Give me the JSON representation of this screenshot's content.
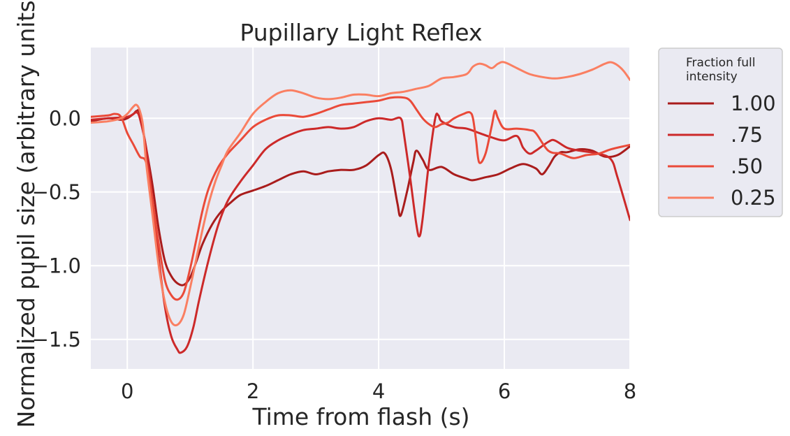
{
  "chart_data": {
    "type": "line",
    "title": "Pupillary Light Reflex",
    "xlabel": "Time from flash (s)",
    "ylabel": "Normalized pupil size (arbitrary units)",
    "xlim": [
      -0.58,
      8
    ],
    "ylim": [
      -1.7,
      0.48
    ],
    "xticks": [
      0,
      2,
      4,
      6,
      8
    ],
    "xtick_labels": [
      "0",
      "2",
      "4",
      "6",
      "8"
    ],
    "yticks": [
      0.0,
      -0.5,
      -1.0,
      -1.5
    ],
    "ytick_labels": [
      "0.0",
      "−0.5",
      "−1.0",
      "−1.5"
    ],
    "grid": true,
    "legend": {
      "title": "Fraction full intensity",
      "title_lines": [
        "Fraction full",
        "intensity"
      ],
      "placement": "outside-top-right"
    },
    "series": [
      {
        "name": "1.00",
        "color": "#a91c1c",
        "points": [
          [
            -0.58,
            -0.02
          ],
          [
            -0.3,
            0.0
          ],
          [
            -0.1,
            -0.01
          ],
          [
            0.0,
            0.0
          ],
          [
            0.1,
            0.03
          ],
          [
            0.15,
            0.05
          ],
          [
            0.2,
            0.03
          ],
          [
            0.3,
            -0.2
          ],
          [
            0.4,
            -0.45
          ],
          [
            0.5,
            -0.75
          ],
          [
            0.6,
            -0.97
          ],
          [
            0.7,
            -1.07
          ],
          [
            0.8,
            -1.12
          ],
          [
            0.9,
            -1.13
          ],
          [
            1.0,
            -1.08
          ],
          [
            1.1,
            -0.97
          ],
          [
            1.2,
            -0.85
          ],
          [
            1.35,
            -0.72
          ],
          [
            1.5,
            -0.63
          ],
          [
            1.65,
            -0.57
          ],
          [
            1.8,
            -0.52
          ],
          [
            2.0,
            -0.49
          ],
          [
            2.2,
            -0.46
          ],
          [
            2.4,
            -0.42
          ],
          [
            2.6,
            -0.38
          ],
          [
            2.8,
            -0.36
          ],
          [
            3.0,
            -0.38
          ],
          [
            3.2,
            -0.36
          ],
          [
            3.4,
            -0.35
          ],
          [
            3.6,
            -0.35
          ],
          [
            3.8,
            -0.32
          ],
          [
            4.0,
            -0.25
          ],
          [
            4.1,
            -0.24
          ],
          [
            4.2,
            -0.35
          ],
          [
            4.3,
            -0.58
          ],
          [
            4.35,
            -0.66
          ],
          [
            4.45,
            -0.5
          ],
          [
            4.55,
            -0.3
          ],
          [
            4.6,
            -0.22
          ],
          [
            4.7,
            -0.28
          ],
          [
            4.8,
            -0.35
          ],
          [
            5.0,
            -0.33
          ],
          [
            5.2,
            -0.38
          ],
          [
            5.4,
            -0.41
          ],
          [
            5.5,
            -0.42
          ],
          [
            5.7,
            -0.4
          ],
          [
            5.9,
            -0.38
          ],
          [
            6.1,
            -0.34
          ],
          [
            6.3,
            -0.31
          ],
          [
            6.5,
            -0.34
          ],
          [
            6.6,
            -0.38
          ],
          [
            6.7,
            -0.33
          ],
          [
            6.8,
            -0.26
          ],
          [
            6.9,
            -0.23
          ],
          [
            7.0,
            -0.23
          ],
          [
            7.2,
            -0.21
          ],
          [
            7.4,
            -0.22
          ],
          [
            7.6,
            -0.26
          ],
          [
            7.8,
            -0.25
          ],
          [
            8.0,
            -0.19
          ]
        ]
      },
      {
        "name": ".75",
        "color": "#cc2929",
        "points": [
          [
            -0.58,
            -0.01
          ],
          [
            -0.3,
            0.0
          ],
          [
            0.0,
            0.01
          ],
          [
            0.1,
            0.03
          ],
          [
            0.15,
            0.04
          ],
          [
            0.2,
            0.0
          ],
          [
            0.3,
            -0.2
          ],
          [
            0.4,
            -0.55
          ],
          [
            0.5,
            -0.95
          ],
          [
            0.6,
            -1.28
          ],
          [
            0.7,
            -1.48
          ],
          [
            0.8,
            -1.57
          ],
          [
            0.85,
            -1.59
          ],
          [
            0.95,
            -1.55
          ],
          [
            1.05,
            -1.42
          ],
          [
            1.15,
            -1.22
          ],
          [
            1.3,
            -0.95
          ],
          [
            1.45,
            -0.72
          ],
          [
            1.6,
            -0.56
          ],
          [
            1.8,
            -0.43
          ],
          [
            2.0,
            -0.32
          ],
          [
            2.2,
            -0.21
          ],
          [
            2.4,
            -0.15
          ],
          [
            2.6,
            -0.11
          ],
          [
            2.8,
            -0.08
          ],
          [
            3.0,
            -0.07
          ],
          [
            3.2,
            -0.06
          ],
          [
            3.4,
            -0.07
          ],
          [
            3.6,
            -0.06
          ],
          [
            3.8,
            -0.02
          ],
          [
            4.0,
            0.0
          ],
          [
            4.2,
            -0.01
          ],
          [
            4.35,
            0.0
          ],
          [
            4.4,
            -0.1
          ],
          [
            4.5,
            -0.4
          ],
          [
            4.6,
            -0.72
          ],
          [
            4.65,
            -0.8
          ],
          [
            4.7,
            -0.68
          ],
          [
            4.8,
            -0.3
          ],
          [
            4.9,
            0.0
          ],
          [
            4.95,
            0.02
          ],
          [
            5.0,
            -0.02
          ],
          [
            5.2,
            -0.06
          ],
          [
            5.4,
            -0.07
          ],
          [
            5.6,
            -0.1
          ],
          [
            5.8,
            -0.13
          ],
          [
            6.0,
            -0.15
          ],
          [
            6.2,
            -0.12
          ],
          [
            6.3,
            -0.2
          ],
          [
            6.4,
            -0.24
          ],
          [
            6.5,
            -0.22
          ],
          [
            6.7,
            -0.16
          ],
          [
            6.8,
            -0.15
          ],
          [
            7.0,
            -0.2
          ],
          [
            7.2,
            -0.22
          ],
          [
            7.5,
            -0.24
          ],
          [
            7.7,
            -0.28
          ],
          [
            7.8,
            -0.4
          ],
          [
            8.0,
            -0.69
          ]
        ]
      },
      {
        "name": ".50",
        "color": "#ea4a39",
        "points": [
          [
            -0.58,
            0.01
          ],
          [
            -0.3,
            0.02
          ],
          [
            -0.2,
            0.03
          ],
          [
            -0.1,
            0.01
          ],
          [
            0.0,
            -0.1
          ],
          [
            0.1,
            -0.18
          ],
          [
            0.2,
            -0.26
          ],
          [
            0.3,
            -0.3
          ],
          [
            0.4,
            -0.55
          ],
          [
            0.5,
            -0.85
          ],
          [
            0.6,
            -1.1
          ],
          [
            0.7,
            -1.2
          ],
          [
            0.8,
            -1.23
          ],
          [
            0.9,
            -1.18
          ],
          [
            1.0,
            -1.02
          ],
          [
            1.1,
            -0.82
          ],
          [
            1.2,
            -0.62
          ],
          [
            1.3,
            -0.47
          ],
          [
            1.45,
            -0.33
          ],
          [
            1.6,
            -0.24
          ],
          [
            1.8,
            -0.15
          ],
          [
            2.0,
            -0.06
          ],
          [
            2.2,
            -0.01
          ],
          [
            2.4,
            0.02
          ],
          [
            2.6,
            0.02
          ],
          [
            2.8,
            0.01
          ],
          [
            3.0,
            0.03
          ],
          [
            3.2,
            0.06
          ],
          [
            3.4,
            0.09
          ],
          [
            3.6,
            0.1
          ],
          [
            3.8,
            0.11
          ],
          [
            4.0,
            0.12
          ],
          [
            4.2,
            0.14
          ],
          [
            4.4,
            0.14
          ],
          [
            4.5,
            0.12
          ],
          [
            4.6,
            0.06
          ],
          [
            4.7,
            0.0
          ],
          [
            4.8,
            -0.04
          ],
          [
            4.9,
            -0.06
          ],
          [
            5.0,
            -0.04
          ],
          [
            5.1,
            -0.03
          ],
          [
            5.2,
            0.0
          ],
          [
            5.35,
            0.03
          ],
          [
            5.45,
            0.04
          ],
          [
            5.5,
            0.0
          ],
          [
            5.55,
            -0.15
          ],
          [
            5.6,
            -0.3
          ],
          [
            5.7,
            -0.24
          ],
          [
            5.8,
            -0.05
          ],
          [
            5.85,
            0.05
          ],
          [
            5.9,
            0.0
          ],
          [
            6.0,
            -0.07
          ],
          [
            6.2,
            -0.07
          ],
          [
            6.4,
            -0.08
          ],
          [
            6.5,
            -0.1
          ],
          [
            6.7,
            -0.22
          ],
          [
            6.9,
            -0.24
          ],
          [
            7.1,
            -0.27
          ],
          [
            7.3,
            -0.25
          ],
          [
            7.5,
            -0.24
          ],
          [
            7.7,
            -0.21
          ],
          [
            8.0,
            -0.18
          ]
        ]
      },
      {
        "name": "0.25",
        "color": "#fa7f62",
        "points": [
          [
            -0.58,
            -0.03
          ],
          [
            -0.3,
            -0.02
          ],
          [
            -0.1,
            0.0
          ],
          [
            0.0,
            0.03
          ],
          [
            0.1,
            0.08
          ],
          [
            0.15,
            0.09
          ],
          [
            0.2,
            0.05
          ],
          [
            0.25,
            -0.05
          ],
          [
            0.3,
            -0.3
          ],
          [
            0.4,
            -0.65
          ],
          [
            0.5,
            -1.0
          ],
          [
            0.6,
            -1.25
          ],
          [
            0.7,
            -1.38
          ],
          [
            0.8,
            -1.4
          ],
          [
            0.9,
            -1.33
          ],
          [
            1.0,
            -1.15
          ],
          [
            1.1,
            -0.95
          ],
          [
            1.2,
            -0.75
          ],
          [
            1.3,
            -0.57
          ],
          [
            1.4,
            -0.43
          ],
          [
            1.5,
            -0.32
          ],
          [
            1.6,
            -0.22
          ],
          [
            1.8,
            -0.1
          ],
          [
            2.0,
            0.03
          ],
          [
            2.2,
            0.11
          ],
          [
            2.4,
            0.17
          ],
          [
            2.6,
            0.19
          ],
          [
            2.8,
            0.17
          ],
          [
            3.0,
            0.14
          ],
          [
            3.2,
            0.13
          ],
          [
            3.4,
            0.14
          ],
          [
            3.6,
            0.16
          ],
          [
            3.8,
            0.16
          ],
          [
            4.0,
            0.15
          ],
          [
            4.2,
            0.17
          ],
          [
            4.4,
            0.18
          ],
          [
            4.6,
            0.2
          ],
          [
            4.8,
            0.22
          ],
          [
            5.0,
            0.27
          ],
          [
            5.2,
            0.28
          ],
          [
            5.4,
            0.3
          ],
          [
            5.5,
            0.35
          ],
          [
            5.6,
            0.37
          ],
          [
            5.7,
            0.36
          ],
          [
            5.8,
            0.34
          ],
          [
            5.9,
            0.37
          ],
          [
            6.0,
            0.38
          ],
          [
            6.2,
            0.34
          ],
          [
            6.4,
            0.3
          ],
          [
            6.6,
            0.28
          ],
          [
            6.8,
            0.27
          ],
          [
            7.0,
            0.28
          ],
          [
            7.2,
            0.3
          ],
          [
            7.4,
            0.33
          ],
          [
            7.6,
            0.37
          ],
          [
            7.7,
            0.38
          ],
          [
            7.8,
            0.36
          ],
          [
            7.9,
            0.32
          ],
          [
            8.0,
            0.26
          ]
        ]
      }
    ]
  }
}
